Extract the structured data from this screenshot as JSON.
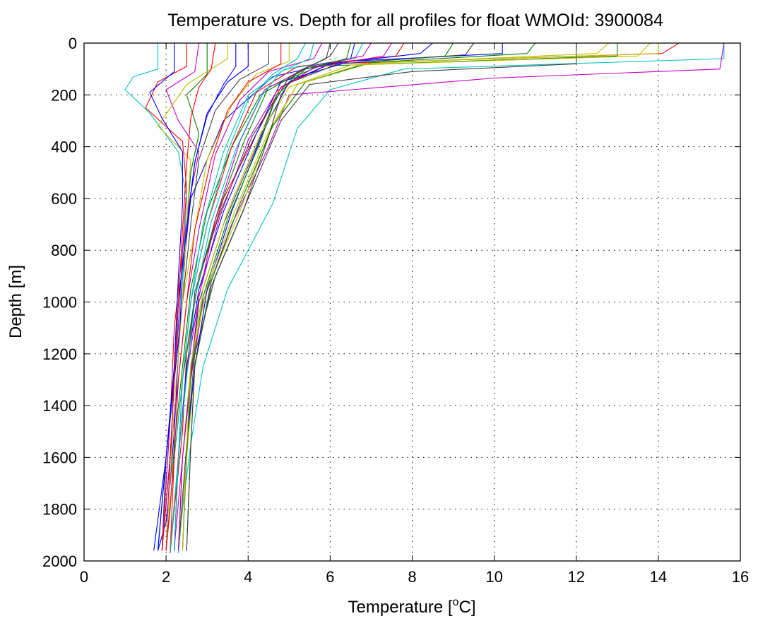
{
  "chart_data": {
    "type": "line",
    "title": "Temperature vs. Depth for all profiles for float WMOId: 3900084",
    "xlabel_main": "Temperature [",
    "xlabel_sup": "o",
    "xlabel_end": "C]",
    "ylabel": "Depth [m]",
    "xlim": [
      0,
      16
    ],
    "ylim": [
      0,
      2000
    ],
    "y_reversed": true,
    "grid": "dotted",
    "x_ticks": [
      0,
      2,
      4,
      6,
      8,
      10,
      12,
      14,
      16
    ],
    "y_ticks": [
      0,
      200,
      400,
      600,
      800,
      1000,
      1200,
      1400,
      1600,
      1800,
      2000
    ],
    "x_tick_labels": [
      "0",
      "2",
      "4",
      "6",
      "8",
      "10",
      "12",
      "14",
      "16"
    ],
    "y_tick_labels": [
      "0",
      "200",
      "400",
      "600",
      "800",
      "1000",
      "1200",
      "1400",
      "1600",
      "1800",
      "2000"
    ],
    "series_colors": [
      "#0000ff",
      "#008000",
      "#ff0000",
      "#00bfbf",
      "#bf00bf",
      "#bfbf00",
      "#404040"
    ],
    "series": [
      {
        "x": [
          6.6,
          6.5,
          4.6,
          3.4,
          2.6,
          2.4,
          2.3,
          2.2,
          2.1,
          2.0,
          1.8
        ],
        "y": [
          0,
          60,
          130,
          300,
          600,
          900,
          1200,
          1500,
          1700,
          1850,
          1960
        ]
      },
      {
        "x": [
          13.0,
          13.0,
          5.5,
          4.3,
          3.6,
          3.0,
          2.6,
          2.4,
          2.2,
          2.1,
          2.0
        ],
        "y": [
          0,
          50,
          90,
          200,
          400,
          650,
          950,
          1250,
          1550,
          1800,
          1960
        ]
      },
      {
        "x": [
          14.5,
          14.1,
          6.0,
          4.8,
          4.2,
          3.4,
          2.8,
          2.5,
          2.4,
          2.2,
          2.1
        ],
        "y": [
          0,
          40,
          80,
          170,
          350,
          600,
          900,
          1200,
          1500,
          1800,
          1970
        ]
      },
      {
        "x": [
          15.6,
          15.6,
          7.8,
          6.0,
          5.2,
          4.6,
          3.5,
          2.9,
          2.6,
          2.4,
          2.3
        ],
        "y": [
          0,
          60,
          100,
          180,
          330,
          620,
          950,
          1250,
          1550,
          1800,
          1970
        ]
      },
      {
        "x": [
          15.6,
          15.5,
          10.0,
          5.0,
          4.5,
          3.6,
          2.9,
          2.6,
          2.4,
          2.2
        ],
        "y": [
          0,
          100,
          135,
          200,
          400,
          700,
          1000,
          1300,
          1600,
          1950
        ]
      },
      {
        "x": [
          14.0,
          14.0,
          7.0,
          5.2,
          4.5,
          3.8,
          3.0,
          2.7,
          2.5,
          2.3
        ],
        "y": [
          0,
          40,
          75,
          160,
          350,
          650,
          950,
          1250,
          1600,
          1960
        ]
      },
      {
        "x": [
          12.0,
          12.0,
          8.0,
          5.5,
          4.8,
          4.0,
          3.2,
          2.7,
          2.5,
          2.3
        ],
        "y": [
          0,
          80,
          110,
          160,
          300,
          600,
          900,
          1200,
          1550,
          1960
        ]
      },
      {
        "x": [
          10.2,
          10.2,
          6.5,
          4.8,
          4.2,
          3.4,
          2.8,
          2.5,
          2.3,
          2.2
        ],
        "y": [
          0,
          40,
          70,
          150,
          350,
          650,
          950,
          1250,
          1600,
          1960
        ]
      },
      {
        "x": [
          9.0,
          8.8,
          5.8,
          4.5,
          3.9,
          3.2,
          2.7,
          2.4,
          2.3,
          2.1
        ],
        "y": [
          0,
          50,
          85,
          170,
          380,
          680,
          980,
          1300,
          1600,
          1960
        ]
      },
      {
        "x": [
          7.8,
          7.6,
          5.2,
          4.2,
          3.6,
          3.0,
          2.6,
          2.4,
          2.2,
          2.1
        ],
        "y": [
          0,
          50,
          90,
          190,
          400,
          700,
          1000,
          1300,
          1600,
          1960
        ]
      },
      {
        "x": [
          6.8,
          6.6,
          4.9,
          4.0,
          3.4,
          2.9,
          2.6,
          2.4,
          2.2,
          2.0
        ],
        "y": [
          0,
          60,
          100,
          200,
          420,
          700,
          1000,
          1300,
          1600,
          1960
        ]
      },
      {
        "x": [
          5.8,
          5.6,
          4.5,
          3.8,
          3.2,
          2.8,
          2.5,
          2.3,
          2.1,
          2.0
        ],
        "y": [
          0,
          60,
          110,
          220,
          430,
          720,
          1000,
          1300,
          1600,
          1960
        ]
      },
      {
        "x": [
          5.0,
          5.0,
          4.2,
          3.6,
          3.0,
          2.7,
          2.4,
          2.2,
          2.1,
          1.9
        ],
        "y": [
          0,
          70,
          120,
          240,
          450,
          720,
          1000,
          1300,
          1600,
          1960
        ]
      },
      {
        "x": [
          4.5,
          4.5,
          3.8,
          3.2,
          2.8,
          2.6,
          2.4,
          2.2,
          2.0,
          1.9
        ],
        "y": [
          0,
          80,
          140,
          260,
          450,
          700,
          1000,
          1300,
          1600,
          1960
        ]
      },
      {
        "x": [
          3.7,
          3.7,
          3.4,
          3.0,
          2.7,
          2.5,
          2.4,
          2.2,
          2.1,
          1.9
        ],
        "y": [
          0,
          90,
          160,
          280,
          460,
          700,
          1000,
          1300,
          1600,
          1960
        ]
      },
      {
        "x": [
          3.0,
          3.0,
          2.5,
          2.8,
          2.6,
          2.5,
          2.3,
          2.2,
          2.0,
          1.8
        ],
        "y": [
          0,
          120,
          200,
          350,
          500,
          700,
          1000,
          1300,
          1600,
          1960
        ]
      },
      {
        "x": [
          2.5,
          2.5,
          1.8,
          1.5,
          2.4,
          2.5,
          2.4,
          2.2,
          2.1,
          1.9
        ],
        "y": [
          0,
          90,
          150,
          250,
          380,
          560,
          800,
          1100,
          1450,
          1960
        ]
      },
      {
        "x": [
          1.8,
          1.8,
          1.2,
          1.0,
          1.6,
          2.3,
          2.5,
          2.4,
          2.2,
          2.0,
          1.8
        ],
        "y": [
          0,
          100,
          130,
          180,
          270,
          420,
          600,
          900,
          1250,
          1600,
          1950
        ]
      },
      {
        "x": [
          2.8,
          2.7,
          2.0,
          2.3,
          2.8,
          2.6,
          2.4,
          2.3,
          2.1,
          1.9
        ],
        "y": [
          0,
          110,
          180,
          300,
          420,
          580,
          800,
          1100,
          1450,
          1960
        ]
      },
      {
        "x": [
          3.5,
          3.5,
          2.5,
          1.8,
          2.6,
          2.5,
          2.4,
          2.2,
          2.0
        ],
        "y": [
          0,
          60,
          160,
          320,
          450,
          700,
          1000,
          1400,
          1960
        ]
      },
      {
        "x": [
          6.2,
          6.0,
          5.0,
          4.6,
          4.2,
          3.4,
          2.8,
          2.6,
          2.4,
          2.3
        ],
        "y": [
          0,
          50,
          130,
          240,
          400,
          700,
          1000,
          1300,
          1600,
          1960
        ]
      },
      {
        "x": [
          8.5,
          8.2,
          6.0,
          5.0,
          4.4,
          3.6,
          3.0,
          2.7,
          2.5,
          2.4
        ],
        "y": [
          0,
          40,
          80,
          150,
          330,
          650,
          950,
          1250,
          1550,
          1960
        ]
      },
      {
        "x": [
          11.0,
          10.8,
          7.0,
          5.4,
          4.6,
          3.8,
          3.1,
          2.7,
          2.6,
          2.5
        ],
        "y": [
          0,
          40,
          75,
          150,
          320,
          620,
          920,
          1250,
          1550,
          1960
        ]
      },
      {
        "x": [
          4.8,
          4.8,
          4.0,
          3.5,
          3.1,
          2.7,
          2.5,
          2.3,
          2.2,
          2.0
        ],
        "y": [
          0,
          80,
          150,
          260,
          450,
          720,
          1000,
          1300,
          1600,
          1960
        ]
      },
      {
        "x": [
          5.4,
          5.2,
          4.6,
          4.0,
          3.5,
          3.0,
          2.6,
          2.4,
          2.3,
          2.1
        ],
        "y": [
          0,
          60,
          120,
          220,
          420,
          700,
          1000,
          1300,
          1600,
          1960
        ]
      },
      {
        "x": [
          7.0,
          6.8,
          5.5,
          4.4,
          3.8,
          3.2,
          2.8,
          2.5,
          2.3,
          2.2
        ],
        "y": [
          0,
          50,
          90,
          180,
          380,
          680,
          980,
          1280,
          1600,
          1960
        ]
      },
      {
        "x": [
          13.8,
          13.5,
          6.5,
          5.0,
          4.3,
          3.5,
          2.9,
          2.6,
          2.4,
          2.3
        ],
        "y": [
          0,
          50,
          85,
          170,
          350,
          650,
          950,
          1250,
          1600,
          1960
        ]
      },
      {
        "x": [
          9.5,
          9.3,
          6.2,
          4.9,
          4.1,
          3.3,
          2.7,
          2.5,
          2.3,
          2.2
        ],
        "y": [
          0,
          45,
          80,
          160,
          360,
          660,
          960,
          1280,
          1600,
          1960
        ]
      },
      {
        "x": [
          4.0,
          4.0,
          3.5,
          3.0,
          2.7,
          2.5,
          2.3,
          2.2,
          2.0,
          1.8
        ],
        "y": [
          0,
          90,
          150,
          270,
          460,
          720,
          1000,
          1300,
          1600,
          1960
        ]
      },
      {
        "x": [
          6.5,
          6.4,
          5.4,
          4.7,
          4.3,
          3.5,
          2.9,
          2.6,
          2.5,
          2.4
        ],
        "y": [
          0,
          60,
          100,
          200,
          380,
          680,
          980,
          1280,
          1600,
          1960
        ]
      },
      {
        "x": [
          3.2,
          3.1,
          2.8,
          2.6,
          2.5,
          2.4,
          2.3,
          2.2,
          2.1,
          1.9
        ],
        "y": [
          0,
          100,
          170,
          290,
          470,
          720,
          1000,
          1300,
          1600,
          1960
        ]
      },
      {
        "x": [
          5.6,
          5.5,
          4.8,
          4.3,
          3.7,
          3.1,
          2.7,
          2.5,
          2.3,
          2.2
        ],
        "y": [
          0,
          60,
          110,
          210,
          410,
          690,
          990,
          1290,
          1600,
          1960
        ]
      },
      {
        "x": [
          7.5,
          7.3,
          5.6,
          4.7,
          4.0,
          3.3,
          2.8,
          2.6,
          2.4,
          2.3
        ],
        "y": [
          0,
          50,
          95,
          185,
          375,
          675,
          975,
          1275,
          1600,
          1960
        ]
      },
      {
        "x": [
          12.8,
          12.5,
          6.8,
          5.2,
          4.5,
          3.7,
          3.0,
          2.6,
          2.5,
          2.4
        ],
        "y": [
          0,
          40,
          80,
          160,
          340,
          640,
          940,
          1240,
          1560,
          1960
        ]
      },
      {
        "x": [
          6.0,
          5.9,
          5.2,
          4.8,
          4.5,
          3.9,
          3.1,
          2.7,
          2.6,
          2.5
        ],
        "y": [
          0,
          60,
          110,
          200,
          360,
          640,
          940,
          1240,
          1560,
          1960
        ]
      },
      {
        "x": [
          2.2,
          2.2,
          1.6,
          1.9,
          2.4,
          2.4,
          2.3,
          2.2,
          2.0,
          1.7
        ],
        "y": [
          0,
          110,
          190,
          290,
          420,
          620,
          900,
          1250,
          1600,
          1960
        ]
      }
    ]
  }
}
